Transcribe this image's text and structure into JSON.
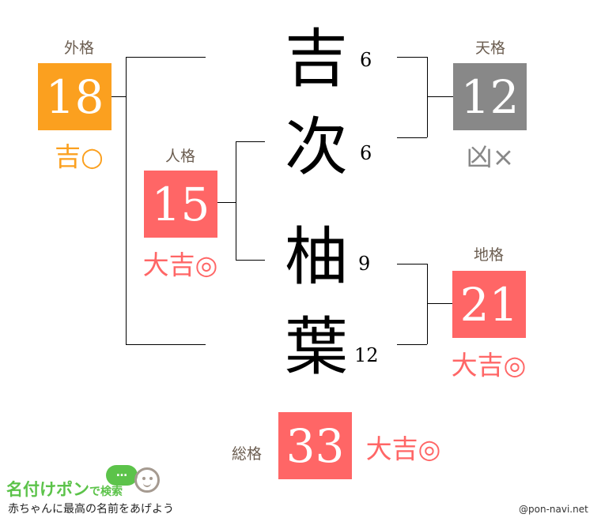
{
  "colors": {
    "kichi": "#FBA01F",
    "daikichi": "#FF6666",
    "kyo": "#888888",
    "label": "#6B5D50"
  },
  "name_chars": [
    {
      "char": "吉",
      "strokes": "6"
    },
    {
      "char": "次",
      "strokes": "6"
    },
    {
      "char": "柚",
      "strokes": "9"
    },
    {
      "char": "葉",
      "strokes": "12"
    }
  ],
  "gaikaku": {
    "label": "外格",
    "value": "18",
    "fortune": "吉○"
  },
  "jinkaku": {
    "label": "人格",
    "value": "15",
    "fortune": "大吉◎"
  },
  "tenkaku": {
    "label": "天格",
    "value": "12",
    "fortune": "凶×"
  },
  "chikaku": {
    "label": "地格",
    "value": "21",
    "fortune": "大吉◎"
  },
  "soukaku": {
    "label": "総格",
    "value": "33",
    "fortune": "大吉◎"
  },
  "logo": {
    "title": "名付けポン",
    "suffix": "で検索",
    "tagline": "赤ちゃんに最高の名前をあげよう",
    "bubble": "…"
  },
  "credit": "@pon-navi.net"
}
